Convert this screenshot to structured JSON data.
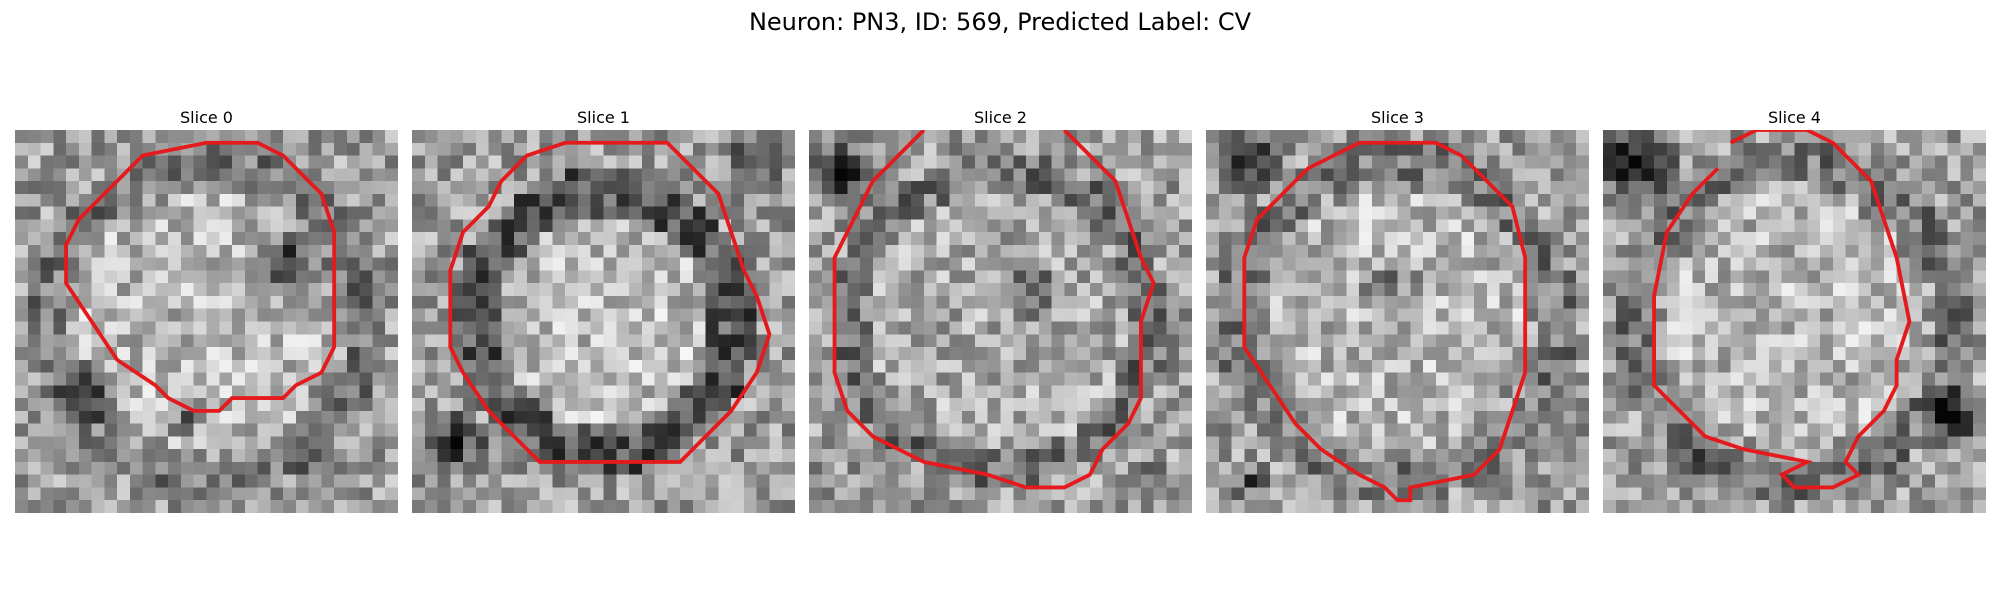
{
  "figure": {
    "title": "Neuron: PN3, ID: 569, Predicted Label: CV"
  },
  "panels": [
    {
      "title": "Slice 0",
      "seed": 11,
      "inner": "bright",
      "darkBlobs": [
        [
          21,
          10,
          4,
          -0.55
        ],
        [
          5,
          20,
          3,
          -0.5
        ],
        [
          13,
          22,
          2,
          -0.35
        ]
      ],
      "contour": [
        [
          10,
          2
        ],
        [
          15,
          1
        ],
        [
          19,
          1
        ],
        [
          21,
          2
        ],
        [
          24,
          5
        ],
        [
          25,
          8
        ],
        [
          25,
          17
        ],
        [
          24,
          19
        ],
        [
          22,
          20
        ],
        [
          21,
          21
        ],
        [
          17,
          21
        ],
        [
          16,
          22
        ],
        [
          14,
          22
        ],
        [
          12,
          21
        ],
        [
          11,
          20
        ],
        [
          8,
          18
        ],
        [
          6,
          15
        ],
        [
          4,
          12
        ],
        [
          4,
          9
        ],
        [
          5,
          7
        ],
        [
          7,
          5
        ]
      ]
    },
    {
      "title": "Slice 1",
      "seed": 23,
      "inner": "ring",
      "darkBlobs": [
        [
          3,
          24,
          3,
          -0.5
        ],
        [
          26,
          2,
          3,
          -0.35
        ]
      ],
      "contour": [
        [
          9,
          2
        ],
        [
          12,
          1
        ],
        [
          20,
          1
        ],
        [
          22,
          3
        ],
        [
          24,
          5
        ],
        [
          25,
          8
        ],
        [
          26,
          11
        ],
        [
          27,
          13
        ],
        [
          28,
          16
        ],
        [
          27,
          19
        ],
        [
          25,
          22
        ],
        [
          23,
          24
        ],
        [
          21,
          26
        ],
        [
          10,
          26
        ],
        [
          8,
          24
        ],
        [
          6,
          22
        ],
        [
          4,
          19
        ],
        [
          3,
          17
        ],
        [
          3,
          11
        ],
        [
          4,
          8
        ],
        [
          6,
          6
        ],
        [
          7,
          4
        ]
      ]
    },
    {
      "title": "Slice 2",
      "seed": 37,
      "inner": "patchy",
      "darkBlobs": [
        [
          2,
          3,
          3,
          -0.55
        ],
        [
          17,
          12,
          3,
          -0.45
        ],
        [
          26,
          27,
          2,
          -0.25
        ]
      ],
      "contour": [
        [
          9,
          0
        ],
        [
          7,
          2
        ],
        [
          5,
          4
        ],
        [
          4,
          6
        ],
        [
          3,
          8
        ],
        [
          2,
          10
        ],
        [
          2,
          19
        ],
        [
          3,
          22
        ],
        [
          5,
          24
        ],
        [
          7,
          25
        ],
        [
          9,
          26
        ],
        [
          14,
          27
        ],
        [
          17,
          28
        ],
        [
          20,
          28
        ],
        [
          22,
          27
        ],
        [
          23,
          25
        ],
        [
          25,
          23
        ],
        [
          26,
          21
        ],
        [
          26,
          15
        ],
        [
          27,
          12
        ],
        [
          26,
          10
        ],
        [
          25,
          7
        ],
        [
          24,
          4
        ],
        [
          22,
          2
        ],
        [
          20,
          0
        ]
      ]
    },
    {
      "title": "Slice 3",
      "seed": 53,
      "inner": "bright",
      "darkBlobs": [
        [
          3,
          2,
          3,
          -0.5
        ],
        [
          14,
          12,
          3,
          -0.3
        ],
        [
          3,
          27,
          2,
          -0.3
        ]
      ],
      "contour": [
        [
          4,
          7
        ],
        [
          6,
          5
        ],
        [
          8,
          3
        ],
        [
          10,
          2
        ],
        [
          12,
          1
        ],
        [
          18,
          1
        ],
        [
          20,
          2
        ],
        [
          22,
          4
        ],
        [
          24,
          6
        ],
        [
          25,
          10
        ],
        [
          25,
          19
        ],
        [
          24,
          22
        ],
        [
          23,
          25
        ],
        [
          21,
          27
        ],
        [
          16,
          28
        ],
        [
          16,
          29
        ],
        [
          15,
          29
        ],
        [
          14,
          28
        ],
        [
          12,
          27
        ],
        [
          9,
          25
        ],
        [
          7,
          23
        ],
        [
          5,
          20
        ],
        [
          3,
          17
        ],
        [
          3,
          10
        ]
      ]
    },
    {
      "title": "Slice 4",
      "seed": 71,
      "inner": "bright",
      "darkBlobs": [
        [
          2,
          2,
          4,
          -0.55
        ],
        [
          27,
          22,
          3,
          -0.45
        ],
        [
          7,
          26,
          2,
          -0.3
        ]
      ],
      "contour": [
        [
          10,
          1
        ],
        [
          12,
          0
        ],
        [
          14,
          0
        ],
        [
          16,
          0
        ],
        [
          18,
          1
        ],
        [
          21,
          4
        ],
        [
          22,
          7
        ],
        [
          23,
          10
        ],
        [
          24,
          15
        ],
        [
          23,
          18
        ],
        [
          23,
          20
        ],
        [
          22,
          22
        ],
        [
          20,
          24
        ],
        [
          19,
          26
        ],
        [
          20,
          27
        ],
        [
          18,
          28
        ],
        [
          15,
          28
        ],
        [
          14,
          27
        ],
        [
          16,
          26
        ],
        [
          11,
          25
        ],
        [
          8,
          24
        ],
        [
          6,
          22
        ],
        [
          4,
          20
        ],
        [
          4,
          13
        ],
        [
          5,
          8
        ],
        [
          7,
          5
        ],
        [
          9,
          3
        ]
      ]
    }
  ]
}
